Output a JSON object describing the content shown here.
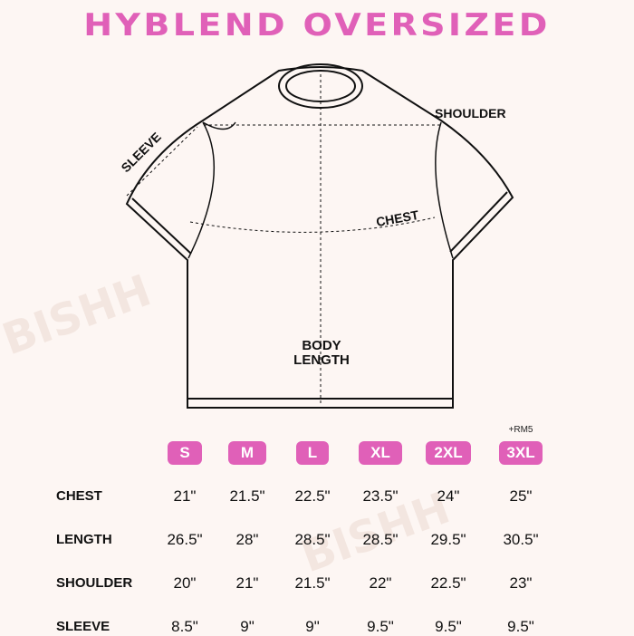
{
  "title": "HYBLEND OVERSIZED",
  "watermark": "BISHH",
  "diagram": {
    "sleeve": "SLEEVE",
    "shoulder": "SHOULDER",
    "chest": "CHEST",
    "body_length": "BODY\nLENGTH"
  },
  "colors": {
    "accent": "#e060b8",
    "background": "#fdf6f3"
  },
  "sizes": [
    {
      "label": "S"
    },
    {
      "label": "M"
    },
    {
      "label": "L"
    },
    {
      "label": "XL"
    },
    {
      "label": "2XL"
    },
    {
      "label": "3XL",
      "note": "+RM5"
    }
  ],
  "rows": [
    {
      "label": "CHEST",
      "values": [
        "21\"",
        "21.5\"",
        "22.5\"",
        "23.5\"",
        "24\"",
        "25\""
      ]
    },
    {
      "label": "LENGTH",
      "values": [
        "26.5\"",
        "28\"",
        "28.5\"",
        "28.5\"",
        "29.5\"",
        "30.5\""
      ]
    },
    {
      "label": "SHOULDER",
      "values": [
        "20\"",
        "21\"",
        "21.5\"",
        "22\"",
        "22.5\"",
        "23\""
      ]
    },
    {
      "label": "SLEEVE",
      "values": [
        "8.5\"",
        "9\"",
        "9\"",
        "9.5\"",
        "9.5\"",
        "9.5\""
      ]
    }
  ]
}
